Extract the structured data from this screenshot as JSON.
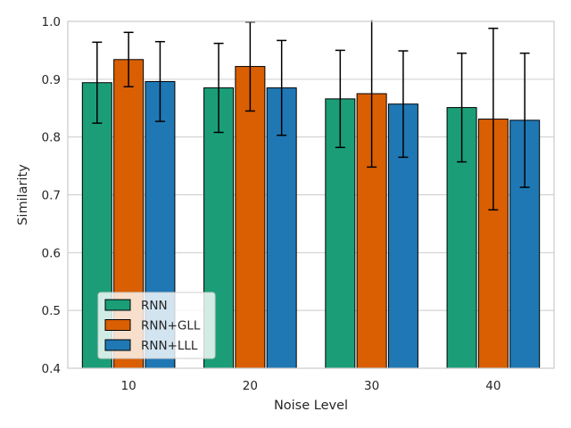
{
  "chart_data": {
    "type": "bar",
    "title": "",
    "xlabel": "Noise Level",
    "ylabel": "Similarity",
    "categories": [
      "10",
      "20",
      "30",
      "40"
    ],
    "ylim": [
      0.4,
      1.0
    ],
    "yticks": [
      "0.4",
      "0.5",
      "0.6",
      "0.7",
      "0.8",
      "0.9",
      "1.0"
    ],
    "grid": true,
    "legend_position": "lower-left",
    "series": [
      {
        "name": "RNN",
        "color": "#1b9e77",
        "values": [
          0.894,
          0.885,
          0.866,
          0.851
        ],
        "errors": [
          0.07,
          0.077,
          0.084,
          0.094
        ]
      },
      {
        "name": "RNN+GLL",
        "color": "#d95f02",
        "values": [
          0.934,
          0.922,
          0.875,
          0.831
        ],
        "errors": [
          0.047,
          0.077,
          0.127,
          0.157
        ]
      },
      {
        "name": "RNN+LLL",
        "color": "#1f78b4",
        "values": [
          0.896,
          0.885,
          0.857,
          0.829
        ],
        "errors": [
          0.069,
          0.082,
          0.092,
          0.116
        ]
      }
    ]
  }
}
